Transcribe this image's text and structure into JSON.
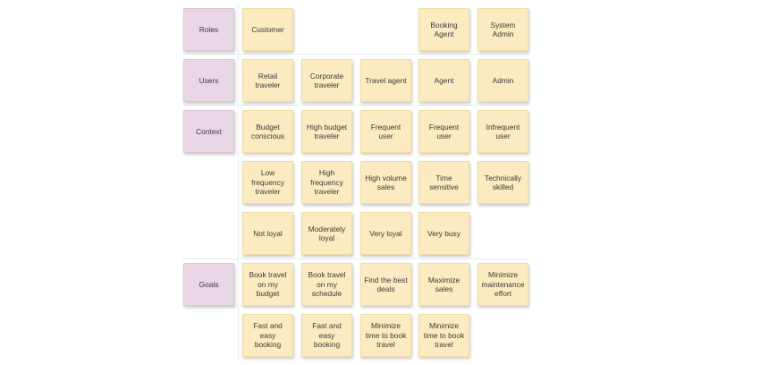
{
  "rows": [
    {
      "key": "roles",
      "header": "Roles",
      "notes": [
        "Customer",
        "",
        "",
        "Booking Agent",
        "System Admin"
      ]
    },
    {
      "key": "users",
      "header": "Users",
      "notes": [
        "Retail traveler",
        "Corporate traveler",
        "Travel agent",
        "Agent",
        "Admin"
      ]
    },
    {
      "key": "context1",
      "header": "Context",
      "notes": [
        "Budget conscious",
        "High budget traveler",
        "Frequent user",
        "Frequent user",
        "Infrequent user"
      ]
    },
    {
      "key": "context2",
      "header": "",
      "notes": [
        "Low frequency traveler",
        "High frequency traveler",
        "High volume sales",
        "Time sensitive",
        "Technically skilled"
      ]
    },
    {
      "key": "context3",
      "header": "",
      "notes": [
        "Not loyal",
        "Moderately loyal",
        "Very loyal",
        "Very busy",
        ""
      ]
    },
    {
      "key": "goals1",
      "header": "Goals",
      "notes": [
        "Book travel on my budget",
        "Book travel on my schedule",
        "Find the best deals",
        "Maximize sales",
        "Minimize maintenance effort"
      ]
    },
    {
      "key": "goals2",
      "header": "",
      "notes": [
        "Fast and easy booking",
        "Fast and easy booking",
        "Minimize time to book travel",
        "Minimize time to book travel",
        ""
      ]
    }
  ],
  "colors": {
    "header_note": "#e9d7e6",
    "sticky_note": "#fcebc0",
    "background": "#ffffff"
  }
}
